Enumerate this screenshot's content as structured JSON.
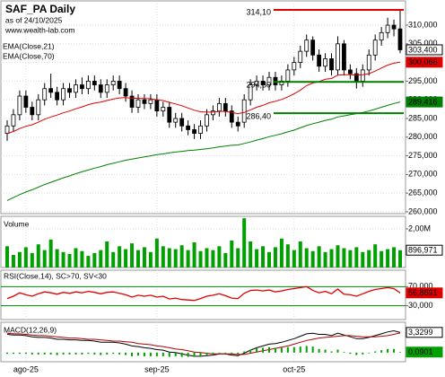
{
  "chart_data": [
    {
      "type": "candlestick",
      "title": "SAF_PA Daily",
      "subtitle": "as of 24/10/2025",
      "source": "www.wealth-lab.com",
      "categories": [
        null,
        null,
        null,
        "ago-25",
        null,
        null,
        null,
        null,
        null,
        null,
        null,
        null,
        null,
        null,
        null,
        null,
        null,
        null,
        null,
        null,
        null,
        null,
        null,
        null,
        "sep-25",
        null,
        null,
        null,
        null,
        null,
        null,
        null,
        null,
        null,
        null,
        null,
        null,
        null,
        null,
        null,
        null,
        null,
        null,
        null,
        null,
        null,
        "oct-25",
        null,
        null,
        null,
        null,
        null,
        null,
        null,
        null,
        null,
        null,
        null,
        null,
        null,
        null,
        null,
        null,
        null
      ],
      "open": [
        281,
        283,
        286,
        291,
        288,
        286,
        290,
        293,
        292,
        290,
        293,
        292,
        294,
        293,
        295,
        294,
        292,
        294,
        295,
        293,
        291,
        288,
        290,
        289,
        290,
        287,
        288,
        284,
        285,
        283,
        282,
        281,
        283,
        286,
        287,
        289,
        287,
        284,
        284,
        290,
        294,
        295,
        294,
        296,
        294,
        295,
        298,
        300,
        303,
        306,
        302,
        299,
        301,
        298,
        305,
        298,
        297,
        295,
        298,
        302,
        306,
        308,
        310,
        309
      ],
      "high": [
        284.5,
        287.5,
        292.5,
        292.5,
        289.5,
        291.5,
        294.5,
        297,
        293.5,
        294.5,
        294.5,
        295.5,
        296,
        296.5,
        296.5,
        295.5,
        295.5,
        296.5,
        296.5,
        294.5,
        292.5,
        291.5,
        291.5,
        291.5,
        291.5,
        289.5,
        289.5,
        286.5,
        286.5,
        284.5,
        283.5,
        284.5,
        287.5,
        288.5,
        290.5,
        290.5,
        288.5,
        285.5,
        291.5,
        295.5,
        296.5,
        296.5,
        297.5,
        297.5,
        296.5,
        299.5,
        301.5,
        304.5,
        307.5,
        307,
        303.5,
        302.5,
        302.5,
        307,
        306,
        299.5,
        298.5,
        299.5,
        303.5,
        307.5,
        309.5,
        312,
        311.5,
        314.1
      ],
      "low": [
        279,
        281.5,
        284.5,
        286.5,
        284.5,
        284.5,
        288.5,
        290.5,
        288.5,
        288.5,
        290.5,
        290.5,
        291.5,
        291.5,
        292.5,
        290.5,
        290.5,
        292.5,
        291.5,
        289.5,
        286.5,
        286.5,
        287.5,
        287.5,
        285.5,
        285.5,
        282.5,
        282.5,
        281.5,
        280.5,
        279.5,
        279.5,
        281.5,
        284.5,
        285.5,
        285.5,
        282.5,
        281.5,
        282.5,
        288.5,
        292.5,
        292.5,
        292.5,
        292.5,
        292.5,
        293.5,
        296.5,
        298.5,
        301.5,
        300.5,
        297.5,
        297.5,
        296.5,
        296.5,
        296.5,
        295.5,
        293,
        293.5,
        296.5,
        300.5,
        304.5,
        306.5,
        307,
        302.5
      ],
      "close": [
        283,
        286,
        291,
        288,
        286,
        290,
        293,
        292,
        290,
        293,
        292,
        294,
        293,
        295,
        294,
        292,
        294,
        295,
        293,
        291,
        288,
        290,
        289,
        290,
        287,
        288,
        284,
        285,
        283,
        282,
        281,
        283,
        286,
        287,
        289,
        287,
        284,
        283,
        290,
        294,
        295,
        294,
        296,
        294,
        295,
        298,
        300,
        303,
        306,
        302,
        299,
        301,
        298,
        305,
        298,
        297,
        295,
        298,
        302,
        306,
        308,
        310,
        309,
        303.4
      ],
      "close_label": "303,400",
      "series": [
        {
          "name": "EMA(Close,21)",
          "color": "#e00000",
          "last_label": "300,066",
          "values": [
            281,
            281.5,
            282.3,
            282.9,
            283.3,
            284,
            284.8,
            285.4,
            285.9,
            286.5,
            287,
            287.6,
            288.1,
            288.7,
            289.1,
            289.4,
            289.8,
            290.2,
            290.5,
            290.6,
            290.4,
            290.4,
            290.3,
            290.3,
            290,
            289.8,
            289.3,
            288.9,
            288.4,
            287.8,
            287.2,
            286.8,
            286.7,
            286.7,
            286.9,
            286.9,
            286.6,
            286.3,
            286.6,
            287.3,
            288,
            288.5,
            289.2,
            289.6,
            290.1,
            290.8,
            291.6,
            292.6,
            293.8,
            294.5,
            294.9,
            295.5,
            295.7,
            296.6,
            296.7,
            296.7,
            296.6,
            296.7,
            297,
            297.7,
            298.5,
            299.3,
            299.8,
            300.066
          ]
        },
        {
          "name": "EMA(Close,70)",
          "color": "#008000",
          "last_label": "289,416",
          "values": [
            263,
            263.8,
            264.6,
            265.3,
            265.9,
            266.6,
            267.3,
            267.9,
            268.5,
            269.1,
            269.6,
            270.2,
            270.7,
            271.2,
            271.7,
            272.1,
            272.6,
            273,
            273.4,
            273.8,
            274.1,
            274.4,
            274.7,
            275,
            275.3,
            275.5,
            275.8,
            276,
            276.2,
            276.4,
            276.5,
            276.7,
            276.9,
            277.1,
            277.4,
            277.6,
            277.8,
            277.9,
            278.3,
            278.7,
            279.2,
            279.6,
            280.1,
            280.5,
            280.9,
            281.4,
            281.9,
            282.5,
            283.1,
            283.6,
            284,
            284.5,
            284.8,
            285.4,
            285.7,
            286,
            286.3,
            286.6,
            287,
            287.5,
            288,
            288.5,
            289,
            289.416
          ]
        }
      ],
      "annotations": [
        {
          "label": "314,10",
          "value": 314.1,
          "color": "#e00000"
        },
        {
          "label": "294,80",
          "value": 294.8,
          "color": "#008000"
        },
        {
          "label": "286,40",
          "value": 286.4,
          "color": "#008000"
        }
      ],
      "ylim": [
        259.5,
        316.5
      ],
      "yticks": [
        {
          "value": 260,
          "label": "260,000"
        },
        {
          "value": 265,
          "label": "265,000"
        },
        {
          "value": 270,
          "label": "270,000"
        },
        {
          "value": 275,
          "label": "275,000"
        },
        {
          "value": 280,
          "label": "280,000"
        },
        {
          "value": 285,
          "label": "285,000"
        },
        {
          "value": 290,
          "label": "290,000"
        },
        {
          "value": 295,
          "label": "295,000"
        },
        {
          "value": 300,
          "label": "300,000"
        },
        {
          "value": 305,
          "label": "305,000"
        },
        {
          "value": 310,
          "label": "310,000"
        }
      ],
      "grid": true
    },
    {
      "type": "bar",
      "title": "Volume",
      "color": "#00a000",
      "last_label": "896,971",
      "values": [
        1100000,
        650000,
        800000,
        1050000,
        750000,
        1200000,
        900000,
        1450000,
        950000,
        800000,
        700000,
        1000000,
        850000,
        600000,
        750000,
        900000,
        1350000,
        800000,
        1100000,
        950000,
        1250000,
        900000,
        1050000,
        800000,
        1500000,
        1100000,
        1000000,
        950000,
        1150000,
        900000,
        1300000,
        850000,
        1000000,
        900000,
        1100000,
        750000,
        1400000,
        1000000,
        2550000,
        1350000,
        950000,
        1100000,
        800000,
        1050000,
        1500000,
        1200000,
        900000,
        1350000,
        1000000,
        850000,
        1100000,
        800000,
        950000,
        1150000,
        1000000,
        900000,
        1050000,
        800000,
        900000,
        1200000,
        850000,
        950000,
        1050000,
        896971
      ],
      "ylim": [
        0,
        2650000
      ],
      "yticks": [
        {
          "value": 2000000,
          "label": "2,00M"
        }
      ],
      "grid": true
    },
    {
      "type": "line",
      "title": "RSI(Close,14), SC>70, SV<30",
      "color": "#e00000",
      "last_label": "56,8891",
      "band_color": "#008000",
      "values": [
        45,
        50,
        57,
        53,
        50,
        55,
        59,
        57,
        54,
        58,
        56,
        59,
        57,
        60,
        58,
        55,
        58,
        59,
        56,
        53,
        48,
        52,
        50,
        52,
        48,
        50,
        44,
        46,
        43,
        42,
        41,
        45,
        50,
        52,
        55,
        51,
        46,
        45,
        56,
        62,
        63,
        61,
        63,
        59,
        61,
        64,
        66,
        68,
        70,
        62,
        57,
        60,
        55,
        65,
        54,
        53,
        50,
        55,
        60,
        64,
        66,
        68,
        66,
        56.8891
      ],
      "ylim": [
        1,
        104.5
      ],
      "yticks": [
        {
          "value": 70,
          "label": "70,000"
        },
        {
          "value": 30,
          "label": "30,000"
        }
      ],
      "grid": true
    },
    {
      "type": "line",
      "title": "MACD(12,26,9)",
      "series": [
        {
          "color": "#000000",
          "last_label": "3,3299",
          "values": [
            3.0,
            2.9,
            2.9,
            2.8,
            2.6,
            2.5,
            2.5,
            2.4,
            2.2,
            2.2,
            2.1,
            2.1,
            2.0,
            2.0,
            1.9,
            1.7,
            1.7,
            1.7,
            1.6,
            1.4,
            1.1,
            1.0,
            0.8,
            0.7,
            0.5,
            0.4,
            0.1,
            0.0,
            -0.2,
            -0.4,
            -0.6,
            -0.6,
            -0.5,
            -0.4,
            -0.2,
            -0.2,
            -0.4,
            -0.5,
            -0.1,
            0.4,
            0.8,
            1.1,
            1.4,
            1.5,
            1.7,
            2.0,
            2.3,
            2.7,
            3.1,
            3.2,
            3.0,
            3.0,
            2.8,
            3.2,
            2.9,
            2.6,
            2.3,
            2.3,
            2.5,
            2.8,
            3.1,
            3.4,
            3.6,
            3.3299
          ]
        },
        {
          "color": "#b00000",
          "values": [
            3.2,
            3.1,
            3.1,
            3.0,
            2.9,
            2.8,
            2.8,
            2.7,
            2.6,
            2.5,
            2.4,
            2.4,
            2.3,
            2.2,
            2.2,
            2.1,
            2.0,
            1.9,
            1.9,
            1.8,
            1.7,
            1.5,
            1.4,
            1.3,
            1.1,
            1.0,
            0.8,
            0.6,
            0.5,
            0.3,
            0.1,
            0.0,
            -0.1,
            -0.2,
            -0.2,
            -0.2,
            -0.2,
            -0.3,
            -0.3,
            -0.1,
            0.1,
            0.3,
            0.5,
            0.7,
            0.9,
            1.1,
            1.4,
            1.7,
            2.0,
            2.2,
            2.4,
            2.5,
            2.6,
            2.7,
            2.8,
            2.8,
            2.7,
            2.6,
            2.6,
            2.6,
            2.7,
            2.8,
            3.0,
            3.2398
          ]
        },
        {
          "type": "bar",
          "color": "#00a000",
          "last_label": "0,0901",
          "values": [
            -0.2,
            -0.2,
            -0.2,
            -0.2,
            -0.3,
            -0.3,
            -0.3,
            -0.3,
            -0.4,
            -0.3,
            -0.3,
            -0.3,
            -0.3,
            -0.2,
            -0.3,
            -0.4,
            -0.3,
            -0.2,
            -0.3,
            -0.4,
            -0.6,
            -0.5,
            -0.6,
            -0.6,
            -0.6,
            -0.6,
            -0.7,
            -0.6,
            -0.7,
            -0.7,
            -0.7,
            -0.6,
            -0.4,
            -0.2,
            0,
            0,
            -0.2,
            -0.2,
            0.2,
            0.5,
            0.7,
            0.8,
            0.9,
            0.8,
            0.8,
            0.9,
            0.9,
            1.0,
            1.1,
            1.0,
            0.6,
            0.5,
            0.2,
            0.5,
            0.1,
            -0.2,
            -0.4,
            -0.3,
            -0.1,
            0.2,
            0.4,
            0.6,
            0.6,
            0.0901
          ]
        }
      ],
      "ylim": [
        -1.5,
        5
      ],
      "grid": true
    }
  ]
}
